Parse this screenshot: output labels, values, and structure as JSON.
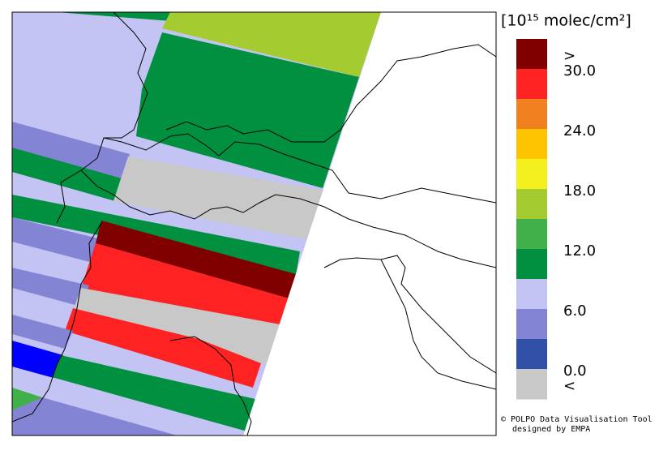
{
  "legend": {
    "title": "[10¹⁵ molec/cm²]",
    "colors": [
      "#800000",
      "#ff2222",
      "#f08020",
      "#ffc400",
      "#f4f020",
      "#a4cc30",
      "#40b048",
      "#009040",
      "#c4c4f4",
      "#8484d4",
      "#3050a8",
      "#c8c8c8"
    ],
    "labels": [
      ">",
      "30.0",
      "24.0",
      "18.0",
      "12.0",
      "6.0",
      "0.0",
      "<"
    ]
  },
  "credits": [
    "© POLPO Data Visualisation Tool",
    "designed by EMPA"
  ]
}
